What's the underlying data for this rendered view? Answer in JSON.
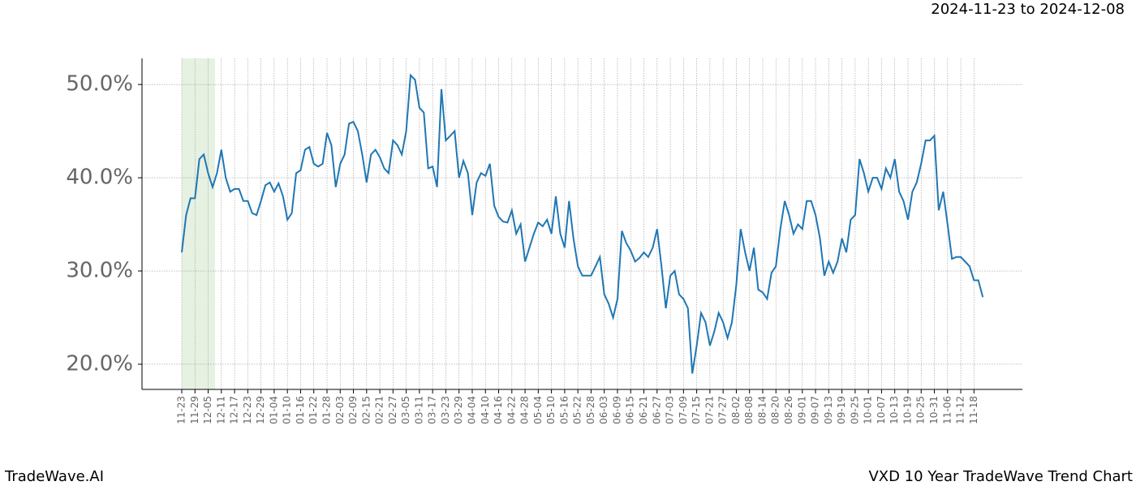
{
  "chart_data": {
    "type": "line",
    "subtitle": "2024-11-23 to 2024-12-08",
    "footer_left": "TradeWave.AI",
    "footer_right": "VXD 10 Year TradeWave Trend Chart",
    "categories": [
      "11-23",
      null,
      null,
      "11-29",
      null,
      null,
      "12-05",
      null,
      null,
      "12-11",
      null,
      null,
      "12-17",
      null,
      null,
      "12-23",
      null,
      null,
      "12-29",
      null,
      null,
      "01-04",
      null,
      null,
      "01-10",
      null,
      null,
      "01-16",
      null,
      null,
      "01-22",
      null,
      null,
      "01-28",
      null,
      null,
      "02-03",
      null,
      null,
      "02-09",
      null,
      null,
      "02-15",
      null,
      null,
      "02-21",
      null,
      null,
      "02-27",
      null,
      null,
      "03-05",
      null,
      null,
      "03-11",
      null,
      null,
      "03-17",
      null,
      null,
      "03-23",
      null,
      null,
      "03-29",
      null,
      null,
      "04-04",
      null,
      null,
      "04-10",
      null,
      null,
      "04-16",
      null,
      null,
      "04-22",
      null,
      null,
      "04-28",
      null,
      null,
      "05-04",
      null,
      null,
      "05-10",
      null,
      null,
      "05-16",
      null,
      null,
      "05-22",
      null,
      null,
      "05-28",
      null,
      null,
      "06-03",
      null,
      null,
      "06-09",
      null,
      null,
      "06-15",
      null,
      null,
      "06-21",
      null,
      null,
      "06-27",
      null,
      null,
      "07-03",
      null,
      null,
      "07-09",
      null,
      null,
      "07-15",
      null,
      null,
      "07-21",
      null,
      null,
      "07-27",
      null,
      null,
      "08-02",
      null,
      null,
      "08-08",
      null,
      null,
      "08-14",
      null,
      null,
      "08-20",
      null,
      null,
      "08-26",
      null,
      null,
      "09-01",
      null,
      null,
      "09-07",
      null,
      null,
      "09-13",
      null,
      null,
      "09-19",
      null,
      null,
      "09-25",
      null,
      null,
      "10-01",
      null,
      null,
      "10-07",
      null,
      null,
      "10-13",
      null,
      null,
      "10-19",
      null,
      null,
      "10-25",
      null,
      null,
      "10-31",
      null,
      null,
      "11-06",
      null,
      null,
      "11-12",
      null,
      null,
      "11-18",
      null,
      null
    ],
    "series": [
      {
        "color": "#1f77b4",
        "values": [
          32.0,
          36,
          37.8,
          37.8,
          42,
          42.5,
          40.5,
          39,
          40.5,
          43,
          40,
          38.5,
          38.8,
          38.8,
          37.5,
          37.5,
          36.2,
          36,
          37.5,
          39.2,
          39.5,
          38.5,
          39.4,
          38,
          35.5,
          36.2,
          40.5,
          40.8,
          43,
          43.3,
          41.5,
          41.2,
          41.5,
          44.8,
          43.5,
          39,
          41.5,
          42.5,
          45.8,
          46,
          45,
          42.5,
          39.5,
          42.5,
          43,
          42.2,
          41,
          40.5,
          44,
          43.5,
          42.5,
          45,
          51,
          50.5,
          47.5,
          47,
          41,
          41.2,
          39,
          49.5,
          44,
          44.5,
          45,
          40,
          41.8,
          40.5,
          36,
          39.5,
          40.5,
          40.2,
          41.5,
          37,
          35.8,
          35.3,
          35.2,
          36.5,
          34,
          35,
          31,
          32.5,
          34,
          35.2,
          34.8,
          35.5,
          34,
          38,
          34,
          32.5,
          37.5,
          33.5,
          30.5,
          29.5,
          29.5,
          29.5,
          30.5,
          31.5,
          27.5,
          26.5,
          25,
          27,
          34.3,
          33,
          32.2,
          31,
          31.4,
          32,
          31.5,
          32.5,
          34.5,
          30.5,
          26,
          29.5,
          30,
          27.5,
          27,
          26,
          19,
          22,
          25.5,
          24.5,
          22,
          23.5,
          25.5,
          24.5,
          22.8,
          24.5,
          28.5,
          34.5,
          32,
          30,
          32.5,
          28,
          27.7,
          27,
          29.8,
          30.5,
          34.5,
          37.5,
          36,
          34,
          35,
          34.5,
          37.5,
          37.5,
          36,
          33.5,
          29.5,
          31,
          29.8,
          31,
          33.5,
          32,
          35.5,
          36,
          42,
          40.5,
          38.5,
          40,
          40,
          38.8,
          41,
          40,
          42,
          38.5,
          37.5,
          35.5,
          38.5,
          39.5,
          41.5,
          44,
          44,
          44.5,
          36.5,
          38.5,
          35,
          31.3,
          31.5,
          31.5,
          31,
          30.5,
          29,
          29,
          27.2
        ]
      }
    ],
    "ylim": [
      17.3,
      52.8
    ],
    "yticks": [
      {
        "value": 20,
        "label": "20.0%"
      },
      {
        "value": 30,
        "label": "30.0%"
      },
      {
        "value": 40,
        "label": "40.0%"
      },
      {
        "value": 50,
        "label": "50.0%"
      }
    ],
    "grid": true
  }
}
